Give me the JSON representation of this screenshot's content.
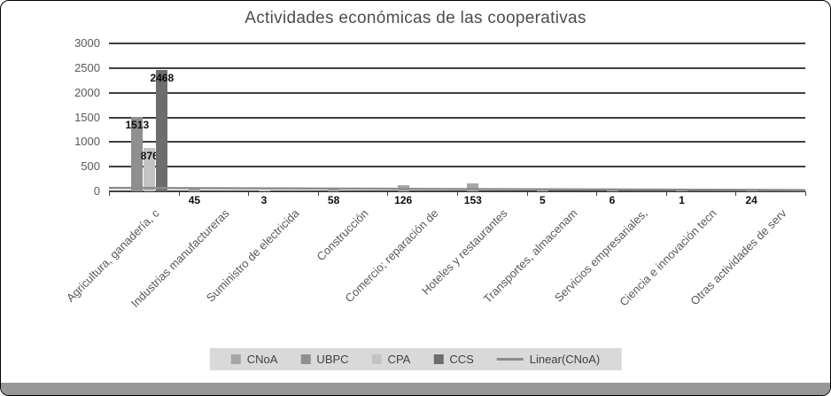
{
  "chart_data": {
    "type": "bar",
    "title": "Actividades económicas de las cooperativas",
    "categories": [
      "Agricultura, ganadería, c",
      "Industrias manufactureras",
      "Suministro de electricida",
      "Construcción",
      "Comercio; reparación de",
      "Hoteles y restaurantes",
      "Transportes, almacenam",
      "Servicios empresariales,",
      "Ciencia e innovación tecn",
      "Otras actividades de serv"
    ],
    "series": [
      {
        "name": "CNoA",
        "color": "#a6a6a6",
        "values": [
          null,
          45,
          3,
          58,
          126,
          153,
          5,
          6,
          1,
          24
        ]
      },
      {
        "name": "UBPC",
        "color": "#8f8f8f",
        "values": [
          1513,
          null,
          null,
          null,
          null,
          null,
          null,
          null,
          null,
          null
        ]
      },
      {
        "name": "CPA",
        "color": "#c3c3c3",
        "values": [
          876,
          null,
          null,
          null,
          null,
          null,
          null,
          null,
          null,
          null
        ]
      },
      {
        "name": "CCS",
        "color": "#6d6d6d",
        "values": [
          2468,
          null,
          null,
          null,
          null,
          null,
          null,
          null,
          null,
          null
        ]
      }
    ],
    "trendline": {
      "name": "Linear(CNoA)",
      "color": "#8c8c8c",
      "start_value": 70,
      "end_value": 25
    },
    "ylim": [
      0,
      3000
    ],
    "y_step": 500,
    "y_ticks": [
      "3000",
      "2500",
      "2000",
      "1500",
      "1000",
      "500",
      "0"
    ],
    "grid": true,
    "legend_position": "bottom",
    "data_labels": true
  }
}
